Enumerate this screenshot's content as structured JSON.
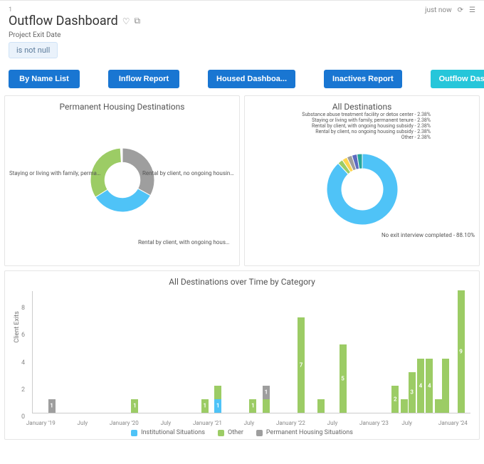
{
  "colors": {
    "blue_btn": "#1976d2",
    "teal_btn": "#26c6da",
    "series_institutional": "#4fc3f7",
    "series_other": "#9ccc65",
    "series_permanent": "#9e9e9e",
    "donut1_a": "#9e9e9e",
    "donut1_b": "#4fc3f7",
    "donut1_c": "#9ccc65",
    "donut2_main": "#4fc3f7",
    "donut2_s1": "#9ccc65",
    "donut2_s2": "#ffd54f",
    "donut2_s3": "#9e9e9e",
    "donut2_s4": "#5c6bc0",
    "donut2_s5": "#26a69a",
    "donut2_s6": "#000000"
  },
  "header": {
    "index": "1",
    "title": "Outflow Dashboard",
    "timestamp": "just now"
  },
  "filter": {
    "label": "Project Exit Date",
    "chip": "is not null"
  },
  "tabs": [
    {
      "label": "By Name List",
      "active": false
    },
    {
      "label": "Inflow Report",
      "active": false
    },
    {
      "label": "Housed Dashboa...",
      "active": false
    },
    {
      "label": "Inactives Report",
      "active": false
    },
    {
      "label": "Outflow Dashboa...",
      "active": true
    }
  ],
  "panel_perm": {
    "title": "Permanent Housing Destinations",
    "donut": {
      "slices": [
        {
          "label": "Staying or living with family, permanent ...",
          "pct": 33,
          "colorKey": "donut1_a"
        },
        {
          "label": "Rental by client, no ongoing housing s...",
          "pct": 33,
          "colorKey": "donut1_b"
        },
        {
          "label": "Rental by client, with ongoing housing subsidy - 33...",
          "pct": 33,
          "colorKey": "donut1_c"
        }
      ],
      "inner_ratio": 0.55
    }
  },
  "panel_all": {
    "title": "All Destinations",
    "donut": {
      "main_label": "No exit interview completed - 88.10%",
      "top_labels": [
        "Substance abuse treatment facility or detox center - 2.38%",
        "Staying or living with family, permanent tenure - 2.38%",
        "Rental by client, with ongoing housing subsidy - 2.38%",
        "Rental by client, no ongoing housing subsidy - 2.38%",
        "Other - 2.38%"
      ],
      "slices": [
        {
          "pct": 88.1,
          "colorKey": "donut2_main"
        },
        {
          "pct": 2.38,
          "colorKey": "donut2_s1"
        },
        {
          "pct": 2.38,
          "colorKey": "donut2_s2"
        },
        {
          "pct": 2.38,
          "colorKey": "donut2_s3"
        },
        {
          "pct": 2.38,
          "colorKey": "donut2_s4"
        },
        {
          "pct": 2.38,
          "colorKey": "donut2_s5"
        }
      ],
      "inner_ratio": 0.58
    }
  },
  "timechart": {
    "title": "All Destinations over Time by Category",
    "y_label": "Client Exits",
    "y_max": 9,
    "y_ticks": [
      0,
      2,
      4,
      6,
      8
    ],
    "x_ticks": [
      {
        "label": "January '19",
        "pos": 0.02
      },
      {
        "label": "July",
        "pos": 0.115
      },
      {
        "label": "January '20",
        "pos": 0.21
      },
      {
        "label": "July",
        "pos": 0.305
      },
      {
        "label": "January '21",
        "pos": 0.4
      },
      {
        "label": "July",
        "pos": 0.495
      },
      {
        "label": "January '22",
        "pos": 0.59
      },
      {
        "label": "July",
        "pos": 0.685
      },
      {
        "label": "January '23",
        "pos": 0.78
      },
      {
        "label": "July",
        "pos": 0.855
      },
      {
        "label": "January '24",
        "pos": 0.96
      }
    ],
    "bars": [
      {
        "pos": 0.035,
        "segments": [
          {
            "series": "permanent",
            "value": 1,
            "show_label": true
          }
        ]
      },
      {
        "pos": 0.225,
        "segments": [
          {
            "series": "other",
            "value": 1,
            "show_label": true
          }
        ]
      },
      {
        "pos": 0.385,
        "segments": [
          {
            "series": "other",
            "value": 1,
            "show_label": true
          }
        ]
      },
      {
        "pos": 0.415,
        "segments": [
          {
            "series": "institutional",
            "value": 1,
            "show_label": true
          },
          {
            "series": "other",
            "value": 1,
            "show_label": false
          }
        ]
      },
      {
        "pos": 0.495,
        "segments": [
          {
            "series": "other",
            "value": 1,
            "show_label": true
          }
        ]
      },
      {
        "pos": 0.525,
        "segments": [
          {
            "series": "other",
            "value": 1,
            "show_label": false
          },
          {
            "series": "permanent",
            "value": 1,
            "show_label": true
          }
        ]
      },
      {
        "pos": 0.605,
        "segments": [
          {
            "series": "other",
            "value": 7,
            "show_label": true
          }
        ]
      },
      {
        "pos": 0.65,
        "segments": [
          {
            "series": "other",
            "value": 1,
            "show_label": false
          }
        ]
      },
      {
        "pos": 0.7,
        "segments": [
          {
            "series": "other",
            "value": 5,
            "show_label": true
          }
        ]
      },
      {
        "pos": 0.82,
        "segments": [
          {
            "series": "other",
            "value": 2,
            "show_label": true
          }
        ]
      },
      {
        "pos": 0.84,
        "segments": [
          {
            "series": "other",
            "value": 1,
            "show_label": false
          }
        ]
      },
      {
        "pos": 0.858,
        "segments": [
          {
            "series": "other",
            "value": 3,
            "show_label": true
          }
        ]
      },
      {
        "pos": 0.878,
        "segments": [
          {
            "series": "other",
            "value": 4,
            "show_label": true
          }
        ]
      },
      {
        "pos": 0.898,
        "segments": [
          {
            "series": "other",
            "value": 4,
            "show_label": true
          }
        ]
      },
      {
        "pos": 0.918,
        "segments": [
          {
            "series": "other",
            "value": 1,
            "show_label": false
          }
        ]
      },
      {
        "pos": 0.935,
        "segments": [
          {
            "series": "other",
            "value": 4,
            "show_label": false
          }
        ]
      },
      {
        "pos": 0.97,
        "segments": [
          {
            "series": "other",
            "value": 9,
            "show_label": true
          }
        ]
      }
    ],
    "legend": [
      {
        "label": "Institutional Situations",
        "series": "institutional"
      },
      {
        "label": "Other",
        "series": "other"
      },
      {
        "label": "Permanent Housing Situations",
        "series": "permanent"
      }
    ]
  }
}
